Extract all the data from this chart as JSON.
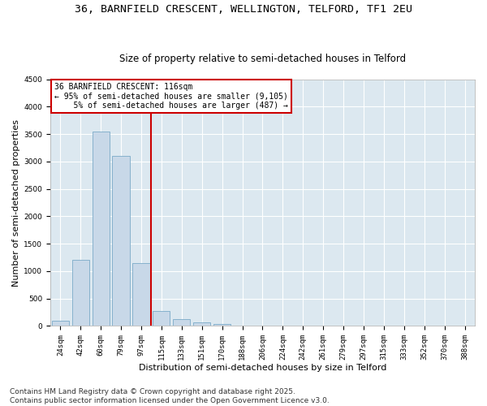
{
  "title_line1": "36, BARNFIELD CRESCENT, WELLINGTON, TELFORD, TF1 2EU",
  "title_line2": "Size of property relative to semi-detached houses in Telford",
  "xlabel": "Distribution of semi-detached houses by size in Telford",
  "ylabel": "Number of semi-detached properties",
  "categories": [
    "24sqm",
    "42sqm",
    "60sqm",
    "79sqm",
    "97sqm",
    "115sqm",
    "133sqm",
    "151sqm",
    "170sqm",
    "188sqm",
    "206sqm",
    "224sqm",
    "242sqm",
    "261sqm",
    "279sqm",
    "297sqm",
    "315sqm",
    "333sqm",
    "352sqm",
    "370sqm",
    "388sqm"
  ],
  "values": [
    100,
    1200,
    3550,
    3100,
    1150,
    270,
    120,
    60,
    30,
    5,
    0,
    0,
    0,
    0,
    0,
    0,
    0,
    0,
    0,
    0,
    0
  ],
  "bar_color": "#c8d8e8",
  "bar_edge_color": "#7aaac8",
  "vline_color": "#cc0000",
  "vline_index": 5,
  "annotation_text": "36 BARNFIELD CRESCENT: 116sqm\n← 95% of semi-detached houses are smaller (9,105)\n    5% of semi-detached houses are larger (487) →",
  "annotation_box_color": "#cc0000",
  "ylim": [
    0,
    4500
  ],
  "yticks": [
    0,
    500,
    1000,
    1500,
    2000,
    2500,
    3000,
    3500,
    4000,
    4500
  ],
  "plot_bg_color": "#dce8f0",
  "grid_color": "#ffffff",
  "footer_line1": "Contains HM Land Registry data © Crown copyright and database right 2025.",
  "footer_line2": "Contains public sector information licensed under the Open Government Licence v3.0.",
  "title_fontsize": 9.5,
  "subtitle_fontsize": 8.5,
  "tick_fontsize": 6.5,
  "xlabel_fontsize": 8,
  "ylabel_fontsize": 8,
  "annotation_fontsize": 7,
  "footer_fontsize": 6.5
}
